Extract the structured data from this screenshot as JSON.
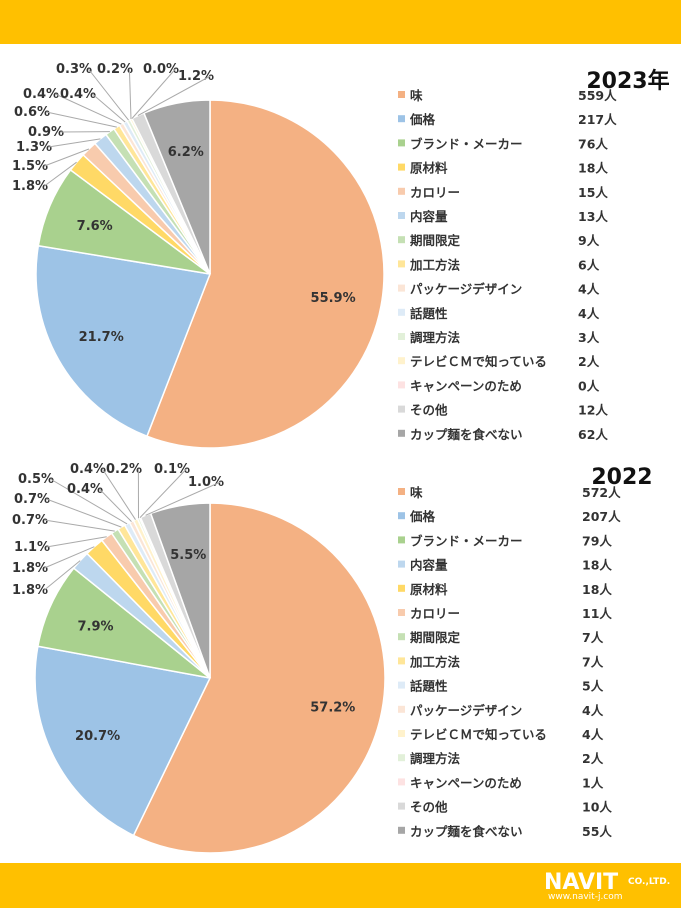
{
  "chart_data": [
    {
      "type": "pie",
      "title": "2023年",
      "categories": [
        "味",
        "価格",
        "ブランド・メーカー",
        "原材料",
        "カロリー",
        "内容量",
        "期間限定",
        "加工方法",
        "パッケージデザイン",
        "話題性",
        "調理方法",
        "テレビＣＭで知っている",
        "キャンペーンのため",
        "その他",
        "カップ麺を食べない"
      ],
      "values": [
        559,
        217,
        76,
        18,
        15,
        13,
        9,
        6,
        4,
        4,
        3,
        2,
        0,
        12,
        62
      ],
      "counts": [
        "559人",
        "217人",
        "76人",
        "18人",
        "15人",
        "13人",
        "9人",
        "6人",
        "4人",
        "4人",
        "3人",
        "2人",
        "0人",
        "12人",
        "62人"
      ],
      "percent_labels": [
        "55.9%",
        "21.7%",
        "7.6%",
        "1.8%",
        "1.5%",
        "1.3%",
        "0.9%",
        "0.6%",
        "0.4%",
        "0.4%",
        "0.3%",
        "0.2%",
        "0.0%",
        "1.2%",
        "6.2%"
      ],
      "colors": [
        "#f4b183",
        "#9dc3e6",
        "#a9d18e",
        "#ffd966",
        "#f8cbad",
        "#bdd7ee",
        "#c5e0b4",
        "#ffe699",
        "#fbe5d6",
        "#deebf7",
        "#e2f0d9",
        "#fff2cc",
        "#fde2e2",
        "#d9d9d9",
        "#a6a6a6"
      ],
      "legend_position": "right"
    },
    {
      "type": "pie",
      "title": "2022",
      "categories": [
        "味",
        "価格",
        "ブランド・メーカー",
        "内容量",
        "原材料",
        "カロリー",
        "期間限定",
        "加工方法",
        "話題性",
        "パッケージデザイン",
        "テレビＣＭで知っている",
        "調理方法",
        "キャンペーンのため",
        "その他",
        "カップ麺を食べない"
      ],
      "values": [
        572,
        207,
        79,
        18,
        18,
        11,
        7,
        7,
        5,
        4,
        4,
        2,
        1,
        10,
        55
      ],
      "counts": [
        "572人",
        "207人",
        "79人",
        "18人",
        "18人",
        "11人",
        "7人",
        "7人",
        "5人",
        "4人",
        "4人",
        "2人",
        "1人",
        "10人",
        "55人"
      ],
      "percent_labels": [
        "57.2%",
        "20.7%",
        "7.9%",
        "1.8%",
        "1.8%",
        "1.1%",
        "0.7%",
        "0.7%",
        "0.5%",
        "0.4%",
        "0.4%",
        "0.2%",
        "0.1%",
        "1.0%",
        "5.5%"
      ],
      "colors": [
        "#f4b183",
        "#9dc3e6",
        "#a9d18e",
        "#bdd7ee",
        "#ffd966",
        "#f8cbad",
        "#c5e0b4",
        "#ffe699",
        "#deebf7",
        "#fbe5d6",
        "#fff2cc",
        "#e2f0d9",
        "#fde2e2",
        "#d9d9d9",
        "#a6a6a6"
      ],
      "legend_position": "right"
    }
  ],
  "logo": {
    "name": "NAVIT",
    "company": "CO.,LTD.",
    "url": "www.navit-j.com"
  }
}
